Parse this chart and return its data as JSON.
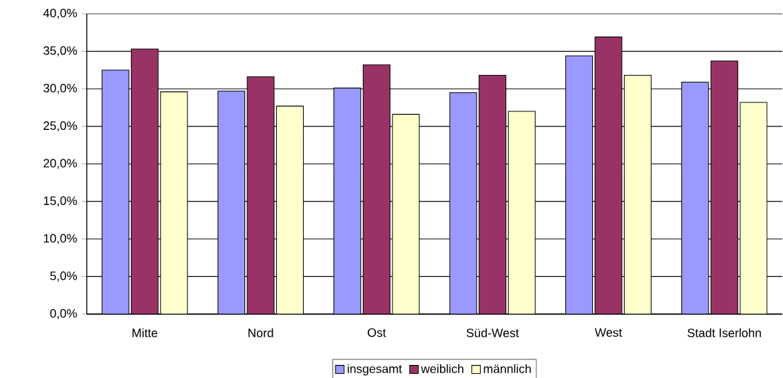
{
  "chart_data": {
    "type": "bar",
    "categories": [
      "Mitte",
      "Nord",
      "Ost",
      "Süd-West",
      "West",
      "Stadt Iserlohn"
    ],
    "series": [
      {
        "name": "insgesamt",
        "color": "#9999ff",
        "values": [
          32.5,
          29.7,
          30.1,
          29.5,
          34.4,
          30.9
        ]
      },
      {
        "name": "weiblich",
        "color": "#993366",
        "values": [
          35.3,
          31.6,
          33.2,
          31.8,
          36.9,
          33.7
        ]
      },
      {
        "name": "männlich",
        "color": "#ffffcc",
        "values": [
          29.6,
          27.7,
          26.6,
          27.0,
          31.8,
          28.2
        ]
      }
    ],
    "ylim": [
      0,
      40
    ],
    "yticks": [
      {
        "value": 0,
        "label": "0,0%"
      },
      {
        "value": 5,
        "label": "5,0%"
      },
      {
        "value": 10,
        "label": "10,0%"
      },
      {
        "value": 15,
        "label": "15,0%"
      },
      {
        "value": 20,
        "label": "20,0%"
      },
      {
        "value": 25,
        "label": "25,0%"
      },
      {
        "value": 30,
        "label": "30,0%"
      },
      {
        "value": 35,
        "label": "35,0%"
      },
      {
        "value": 40,
        "label": "40,0%"
      }
    ],
    "grid": "y",
    "legend": "bottom"
  }
}
